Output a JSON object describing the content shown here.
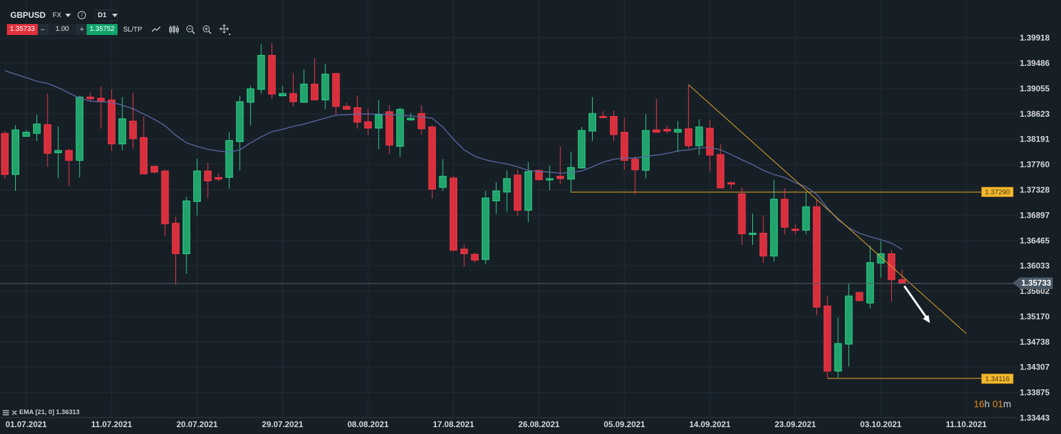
{
  "toolbar": {
    "symbol": "GBPUSD",
    "market": "FX",
    "info_icon": "i",
    "timeframe": "D1",
    "sell_price": "1.35733",
    "minus": "–",
    "quantity": "1.00",
    "plus": "+",
    "buy_price": "1.35752",
    "sltp_label": "SL/TP",
    "icons": [
      "line-chart-icon",
      "candlestick-icon",
      "zoom-out-icon",
      "zoom-in-icon",
      "crosshair-move-icon"
    ]
  },
  "indicator_legend": {
    "label": "EMA [21, 0] 1.36313"
  },
  "countdown": {
    "hours": "16",
    "h_unit": "h",
    "minutes": "01",
    "m_unit": "m"
  },
  "current_price_tag": "1.35733",
  "colors": {
    "background": "#171f26",
    "bull": "#22a36c",
    "bear": "#d82f3d",
    "ema": "#5b6aa6",
    "levels": "#e0a52a",
    "grid": "#222c34"
  },
  "chart_data": {
    "type": "candlestick",
    "title": "GBPUSD D1",
    "price_ticks": [
      "1.39918",
      "1.39486",
      "1.39055",
      "1.38623",
      "1.38191",
      "1.37760",
      "1.37328",
      "1.36897",
      "1.36465",
      "1.36033",
      "1.35602",
      "1.35170",
      "1.34738",
      "1.34307",
      "1.33875",
      "1.33443"
    ],
    "date_labels": [
      {
        "index": 2,
        "label": "01.07.2021"
      },
      {
        "index": 10,
        "label": "11.07.2021"
      },
      {
        "index": 18,
        "label": "20.07.2021"
      },
      {
        "index": 26,
        "label": "29.07.2021"
      },
      {
        "index": 34,
        "label": "08.08.2021"
      },
      {
        "index": 42,
        "label": "17.08.2021"
      },
      {
        "index": 50,
        "label": "26.08.2021"
      },
      {
        "index": 58,
        "label": "05.09.2021"
      },
      {
        "index": 66,
        "label": "14.09.2021"
      },
      {
        "index": 74,
        "label": "23.09.2021"
      },
      {
        "index": 82,
        "label": "03.10.2021"
      },
      {
        "index": 90,
        "label": "11.10.2021"
      }
    ],
    "ohlc_columns": [
      "open",
      "high",
      "low",
      "close"
    ],
    "candles": [
      [
        1.3829,
        1.3833,
        1.3752,
        1.3759
      ],
      [
        1.3759,
        1.3843,
        1.3731,
        1.3835
      ],
      [
        1.3824,
        1.3835,
        1.3824,
        1.3831
      ],
      [
        1.3829,
        1.3861,
        1.3816,
        1.3845
      ],
      [
        1.3844,
        1.3897,
        1.3772,
        1.3795
      ],
      [
        1.3796,
        1.3841,
        1.3753,
        1.38
      ],
      [
        1.38,
        1.3803,
        1.374,
        1.3783
      ],
      [
        1.3783,
        1.3893,
        1.3754,
        1.3891
      ],
      [
        1.3891,
        1.3898,
        1.3884,
        1.3888
      ],
      [
        1.3889,
        1.3909,
        1.3837,
        1.3883
      ],
      [
        1.3886,
        1.3904,
        1.3799,
        1.3811
      ],
      [
        1.3811,
        1.3891,
        1.38,
        1.3854
      ],
      [
        1.385,
        1.3898,
        1.3803,
        1.382
      ],
      [
        1.3822,
        1.3858,
        1.376,
        1.376
      ],
      [
        1.3773,
        1.3774,
        1.3761,
        1.3763
      ],
      [
        1.3765,
        1.3767,
        1.3654,
        1.3675
      ],
      [
        1.3676,
        1.3687,
        1.3572,
        1.3624
      ],
      [
        1.3624,
        1.3721,
        1.359,
        1.3714
      ],
      [
        1.3713,
        1.3786,
        1.3689,
        1.3765
      ],
      [
        1.3765,
        1.3779,
        1.3719,
        1.3748
      ],
      [
        1.3754,
        1.3761,
        1.3747,
        1.3751
      ],
      [
        1.3754,
        1.3831,
        1.3735,
        1.3817
      ],
      [
        1.3815,
        1.3893,
        1.3766,
        1.3883
      ],
      [
        1.3882,
        1.391,
        1.3842,
        1.3905
      ],
      [
        1.3904,
        1.3981,
        1.3897,
        1.3962
      ],
      [
        1.3962,
        1.3983,
        1.3888,
        1.3896
      ],
      [
        1.3893,
        1.391,
        1.3893,
        1.3897
      ],
      [
        1.3897,
        1.3932,
        1.3875,
        1.3883
      ],
      [
        1.3882,
        1.3938,
        1.3881,
        1.3913
      ],
      [
        1.3913,
        1.3957,
        1.3886,
        1.3886
      ],
      [
        1.3886,
        1.3947,
        1.3871,
        1.393
      ],
      [
        1.3931,
        1.3932,
        1.3861,
        1.3875
      ],
      [
        1.3875,
        1.3881,
        1.387,
        1.387
      ],
      [
        1.3873,
        1.3893,
        1.3837,
        1.3848
      ],
      [
        1.3849,
        1.3871,
        1.3826,
        1.3838
      ],
      [
        1.3838,
        1.3886,
        1.3802,
        1.3861
      ],
      [
        1.3866,
        1.3877,
        1.3794,
        1.3809
      ],
      [
        1.3807,
        1.3873,
        1.3789,
        1.387
      ],
      [
        1.3852,
        1.3864,
        1.385,
        1.3855
      ],
      [
        1.3863,
        1.3877,
        1.3827,
        1.3837
      ],
      [
        1.384,
        1.3843,
        1.3718,
        1.3734
      ],
      [
        1.3737,
        1.3785,
        1.3731,
        1.3756
      ],
      [
        1.3753,
        1.3756,
        1.3628,
        1.363
      ],
      [
        1.3632,
        1.3639,
        1.3602,
        1.3624
      ],
      [
        1.3623,
        1.3626,
        1.3609,
        1.3613
      ],
      [
        1.3614,
        1.3731,
        1.3606,
        1.3719
      ],
      [
        1.3714,
        1.3746,
        1.3692,
        1.3731
      ],
      [
        1.3729,
        1.3766,
        1.3696,
        1.3752
      ],
      [
        1.3758,
        1.3767,
        1.3689,
        1.3698
      ],
      [
        1.3698,
        1.378,
        1.3678,
        1.3764
      ],
      [
        1.3766,
        1.3766,
        1.375,
        1.375
      ],
      [
        1.3751,
        1.3774,
        1.3732,
        1.3752
      ],
      [
        1.3756,
        1.3807,
        1.3742,
        1.3752
      ],
      [
        1.3751,
        1.3798,
        1.3728,
        1.3771
      ],
      [
        1.377,
        1.384,
        1.3769,
        1.3834
      ],
      [
        1.3833,
        1.3891,
        1.3816,
        1.3863
      ],
      [
        1.3858,
        1.3867,
        1.3856,
        1.3856
      ],
      [
        1.3858,
        1.3868,
        1.3816,
        1.3827
      ],
      [
        1.3831,
        1.3856,
        1.3767,
        1.3783
      ],
      [
        1.3785,
        1.379,
        1.3725,
        1.3767
      ],
      [
        1.3766,
        1.3862,
        1.3752,
        1.3834
      ],
      [
        1.3835,
        1.3888,
        1.3831,
        1.3831
      ],
      [
        1.3836,
        1.3842,
        1.3829,
        1.3833
      ],
      [
        1.3831,
        1.385,
        1.3797,
        1.3836
      ],
      [
        1.3837,
        1.3912,
        1.3803,
        1.3808
      ],
      [
        1.3808,
        1.3853,
        1.3792,
        1.384
      ],
      [
        1.3838,
        1.3852,
        1.3764,
        1.3792
      ],
      [
        1.3793,
        1.3811,
        1.3736,
        1.3736
      ],
      [
        1.3745,
        1.3747,
        1.3735,
        1.3743
      ],
      [
        1.3726,
        1.3737,
        1.3639,
        1.3658
      ],
      [
        1.3657,
        1.3692,
        1.3639,
        1.3659
      ],
      [
        1.3659,
        1.3689,
        1.3608,
        1.362
      ],
      [
        1.362,
        1.375,
        1.3611,
        1.3717
      ],
      [
        1.3717,
        1.3736,
        1.3657,
        1.3669
      ],
      [
        1.3666,
        1.3674,
        1.3657,
        1.3664
      ],
      [
        1.3664,
        1.3728,
        1.3657,
        1.3704
      ],
      [
        1.3704,
        1.3717,
        1.3519,
        1.3533
      ],
      [
        1.3535,
        1.3553,
        1.3411,
        1.3424
      ],
      [
        1.3424,
        1.3515,
        1.3413,
        1.3471
      ],
      [
        1.347,
        1.3574,
        1.3432,
        1.3552
      ],
      [
        1.3558,
        1.3558,
        1.3544,
        1.3544
      ],
      [
        1.354,
        1.3638,
        1.3531,
        1.3609
      ],
      [
        1.3608,
        1.3646,
        1.3583,
        1.3624
      ],
      [
        1.3624,
        1.363,
        1.3542,
        1.358
      ],
      [
        1.358,
        1.3596,
        1.3573,
        1.35733
      ]
    ],
    "ema": {
      "name": "EMA [21, 0]",
      "values": [
        1.3936,
        1.393,
        1.3924,
        1.3918,
        1.3914,
        1.3907,
        1.3898,
        1.3889,
        1.3884,
        1.3883,
        1.3882,
        1.3877,
        1.3871,
        1.3862,
        1.3853,
        1.3842,
        1.3826,
        1.3813,
        1.3807,
        1.3802,
        1.3799,
        1.3797,
        1.3801,
        1.3813,
        1.3823,
        1.3832,
        1.3836,
        1.3841,
        1.3845,
        1.385,
        1.3855,
        1.386,
        1.3861,
        1.3862,
        1.3862,
        1.3862,
        1.3861,
        1.386,
        1.3859,
        1.3857,
        1.3855,
        1.384,
        1.3819,
        1.3801,
        1.379,
        1.3784,
        1.378,
        1.3777,
        1.3772,
        1.3766,
        1.3764,
        1.3763,
        1.3761,
        1.3763,
        1.3765,
        1.3772,
        1.378,
        1.3785,
        1.3787,
        1.3787,
        1.379,
        1.3792,
        1.3795,
        1.3799,
        1.3801,
        1.3804,
        1.3805,
        1.3801,
        1.3793,
        1.3784,
        1.3776,
        1.3766,
        1.3759,
        1.3754,
        1.3745,
        1.3738,
        1.3725,
        1.3702,
        1.3682,
        1.3668,
        1.3659,
        1.3653,
        1.3648,
        1.3642,
        1.36313
      ]
    },
    "horizontal_levels": [
      {
        "label": "1.37290",
        "price": 1.3729,
        "from_index": 53
      },
      {
        "label": "1.34116",
        "price": 1.34116,
        "from_index": 77
      }
    ],
    "trendline": {
      "from": {
        "index": 64,
        "price": 1.3912
      },
      "to": {
        "index": 90,
        "price": 1.3488
      }
    },
    "arrow": {
      "from": {
        "index": 84.2,
        "price": 1.3569
      },
      "to": {
        "index": 86.6,
        "price": 1.3506
      }
    },
    "current_price": 1.35733
  }
}
